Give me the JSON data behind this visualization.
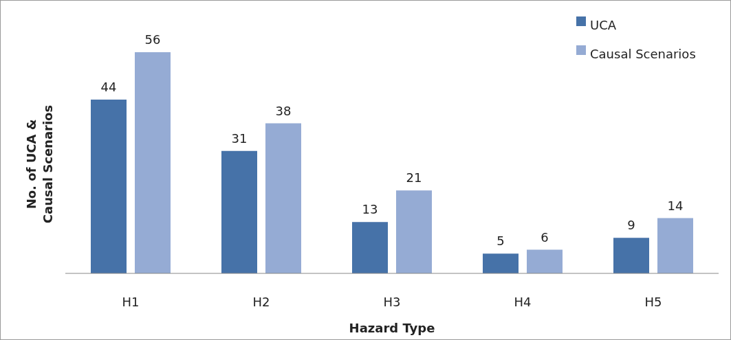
{
  "chart_data": {
    "type": "bar",
    "xlabel": "Hazard Type",
    "ylabel": "No. of UCA & Causal Scenarios",
    "categories": [
      "H1",
      "H2",
      "H3",
      "H4",
      "H5"
    ],
    "series": [
      {
        "name": "UCA",
        "color": "#4672a8",
        "values": [
          44,
          31,
          13,
          5,
          9
        ]
      },
      {
        "name": "Causal Scenarios",
        "color": "#95abd4",
        "values": [
          56,
          38,
          21,
          6,
          14
        ]
      }
    ],
    "data_labels": true,
    "legend": "top right",
    "relative": false
  }
}
